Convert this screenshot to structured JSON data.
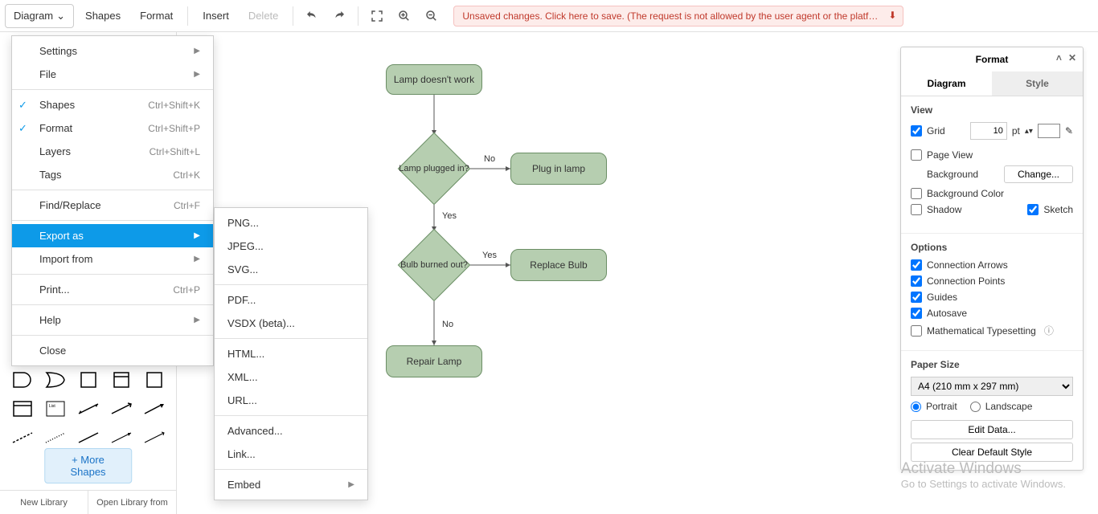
{
  "menubar": {
    "diagram": "Diagram",
    "shapes": "Shapes",
    "format": "Format",
    "insert": "Insert",
    "delete": "Delete"
  },
  "warning": "Unsaved changes. Click here to save. (The request is not allowed by the user agent or the platform...)",
  "diagram_menu": [
    {
      "label": "Settings",
      "arrow": true
    },
    {
      "label": "File",
      "arrow": true
    },
    {
      "div": true
    },
    {
      "label": "Shapes",
      "short": "Ctrl+Shift+K",
      "check": true
    },
    {
      "label": "Format",
      "short": "Ctrl+Shift+P",
      "check": true
    },
    {
      "label": "Layers",
      "short": "Ctrl+Shift+L"
    },
    {
      "label": "Tags",
      "short": "Ctrl+K"
    },
    {
      "div": true
    },
    {
      "label": "Find/Replace",
      "short": "Ctrl+F"
    },
    {
      "div": true
    },
    {
      "label": "Export as",
      "arrow": true,
      "highlight": true
    },
    {
      "label": "Import from",
      "arrow": true
    },
    {
      "div": true
    },
    {
      "label": "Print...",
      "short": "Ctrl+P"
    },
    {
      "div": true
    },
    {
      "label": "Help",
      "arrow": true
    },
    {
      "div": true
    },
    {
      "label": "Close"
    }
  ],
  "export_menu": [
    {
      "label": "PNG..."
    },
    {
      "label": "JPEG..."
    },
    {
      "label": "SVG..."
    },
    {
      "div": true
    },
    {
      "label": "PDF..."
    },
    {
      "label": "VSDX (beta)..."
    },
    {
      "div": true
    },
    {
      "label": "HTML..."
    },
    {
      "label": "XML..."
    },
    {
      "label": "URL..."
    },
    {
      "div": true
    },
    {
      "label": "Advanced..."
    },
    {
      "label": "Link..."
    },
    {
      "div": true
    },
    {
      "label": "Embed",
      "arrow": true
    }
  ],
  "more_shapes": "+ More Shapes",
  "bottom_tabs": {
    "new": "New Library",
    "open": "Open Library from"
  },
  "flow": {
    "n1": "Lamp doesn't work",
    "n2": "Lamp plugged in?",
    "n3": "Plug in lamp",
    "n4": "Bulb burned out?",
    "n5": "Replace Bulb",
    "n6": "Repair Lamp",
    "yes": "Yes",
    "no": "No",
    "colors": {
      "fill": "#b6ceb0",
      "stroke": "#6b8e65",
      "line": "#555555"
    }
  },
  "format_panel": {
    "title": "Format",
    "tabs": {
      "diagram": "Diagram",
      "style": "Style"
    },
    "view": {
      "heading": "View",
      "grid": "Grid",
      "grid_val": "10",
      "grid_unit": "pt",
      "page_view": "Page View",
      "background": "Background",
      "change": "Change...",
      "background_color": "Background Color",
      "shadow": "Shadow",
      "sketch": "Sketch"
    },
    "options": {
      "heading": "Options",
      "conn_arrows": "Connection Arrows",
      "conn_points": "Connection Points",
      "guides": "Guides",
      "autosave": "Autosave",
      "math": "Mathematical Typesetting"
    },
    "paper": {
      "heading": "Paper Size",
      "size": "A4 (210 mm x 297 mm)",
      "portrait": "Portrait",
      "landscape": "Landscape"
    },
    "edit_data": "Edit Data...",
    "clear_style": "Clear Default Style"
  },
  "watermark": {
    "t1": "Activate Windows",
    "t2": "Go to Settings to activate Windows."
  }
}
